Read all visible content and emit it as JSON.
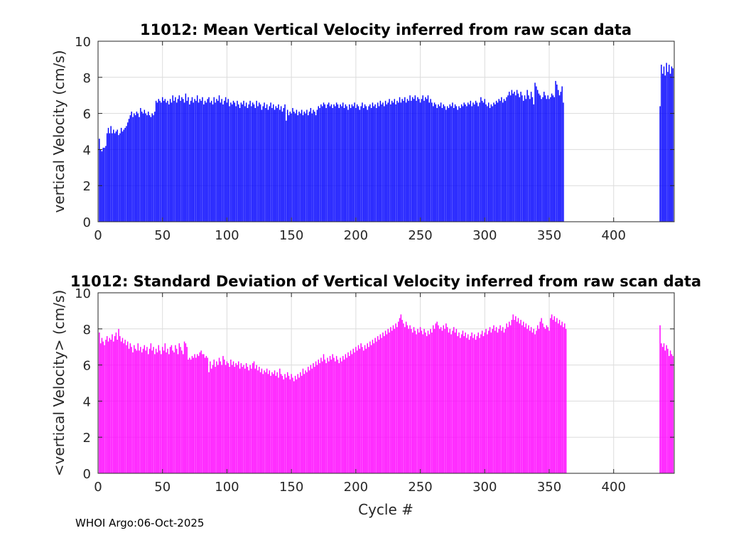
{
  "footer_text": "WHOI Argo:06-Oct-2025",
  "chart_data": [
    {
      "type": "bar",
      "title": "11012: Mean Vertical Velocity inferred from raw scan data",
      "xlabel": "",
      "ylabel": "vertical Velocity (cm/s)",
      "xlim": [
        0,
        447
      ],
      "ylim": [
        0,
        10
      ],
      "xticks": [
        0,
        50,
        100,
        150,
        200,
        250,
        300,
        350,
        400
      ],
      "yticks": [
        0,
        2,
        4,
        6,
        8,
        10
      ],
      "grid": true,
      "color": "#0000ff",
      "series": [
        {
          "name": "mean vertical velocity",
          "segments": [
            {
              "start_cycle": 1,
              "values": [
                4.6,
                4.0,
                3.9,
                4.1,
                4.1,
                4.2,
                4.9,
                5.2,
                4.9,
                5.3,
                4.9,
                5.1,
                4.9,
                5.0,
                5.1,
                4.8,
                4.9,
                5.2,
                5.0,
                5.1,
                5.2,
                5.3,
                5.5,
                5.7,
                5.9,
                6.1,
                5.8,
                6.0,
                5.9,
                6.1,
                6.0,
                5.8,
                6.3,
                6.1,
                6.0,
                6.2,
                6.0,
                5.9,
                6.1,
                5.9,
                5.8,
                6.0,
                5.9,
                6.1,
                6.7,
                6.6,
                6.8,
                6.7,
                6.6,
                6.9,
                6.7,
                6.8,
                6.6,
                6.7,
                6.5,
                6.8,
                6.6,
                7.0,
                6.7,
                6.9,
                6.6,
                6.8,
                7.0,
                6.7,
                6.9,
                6.8,
                6.6,
                7.1,
                6.7,
                6.9,
                6.5,
                6.7,
                6.9,
                6.6,
                6.8,
                6.7,
                7.0,
                6.6,
                6.8,
                6.7,
                6.9,
                6.5,
                6.7,
                6.6,
                6.8,
                6.9,
                6.6,
                6.7,
                6.5,
                6.9,
                6.6,
                6.8,
                6.7,
                7.0,
                6.6,
                6.8,
                6.5,
                6.7,
                6.9,
                6.6,
                6.8,
                6.4,
                6.6,
                6.5,
                6.7,
                6.6,
                6.4,
                6.7,
                6.5,
                6.3,
                6.6,
                6.5,
                6.7,
                6.4,
                6.6,
                6.3,
                6.5,
                6.7,
                6.4,
                6.6,
                6.5,
                6.3,
                6.7,
                6.4,
                6.6,
                6.5,
                6.2,
                6.4,
                6.6,
                6.3,
                6.5,
                6.2,
                6.4,
                6.6,
                6.3,
                6.5,
                6.2,
                6.4,
                6.3,
                6.5,
                6.2,
                6.4,
                6.1,
                6.3,
                6.5,
                5.6,
                6.2,
                5.9,
                6.1,
                6.0,
                6.3,
                6.1,
                6.0,
                6.2,
                5.9,
                6.1,
                6.0,
                6.2,
                5.9,
                6.1,
                6.0,
                6.2,
                5.9,
                6.1,
                6.3,
                6.0,
                6.2,
                6.1,
                5.9,
                6.2,
                6.4,
                6.3,
                6.5,
                6.4,
                6.6,
                6.5,
                6.3,
                6.5,
                6.6,
                6.4,
                6.5,
                6.3,
                6.5,
                6.4,
                6.6,
                6.5,
                6.3,
                6.5,
                6.4,
                6.6,
                6.3,
                6.5,
                6.4,
                6.2,
                6.5,
                6.3,
                6.5,
                6.4,
                6.6,
                6.3,
                6.5,
                6.4,
                6.2,
                6.4,
                6.6,
                6.3,
                6.5,
                6.4,
                6.2,
                6.4,
                6.5,
                6.3,
                6.6,
                6.4,
                6.5,
                6.3,
                6.6,
                6.4,
                6.7,
                6.5,
                6.6,
                6.4,
                6.7,
                6.5,
                6.6,
                6.8,
                6.5,
                6.7,
                6.6,
                6.8,
                6.5,
                6.7,
                6.6,
                6.9,
                6.6,
                6.8,
                6.7,
                6.9,
                6.6,
                6.8,
                6.7,
                7.0,
                6.7,
                6.9,
                6.8,
                7.0,
                6.7,
                6.9,
                6.8,
                6.6,
                6.8,
                7.0,
                6.7,
                6.9,
                6.8,
                7.0,
                6.6,
                6.8,
                6.6,
                6.4,
                6.6,
                6.5,
                6.3,
                6.5,
                6.4,
                6.6,
                6.3,
                6.5,
                6.4,
                6.2,
                6.4,
                6.3,
                6.5,
                6.4,
                6.6,
                6.3,
                6.5,
                6.4,
                6.2,
                6.4,
                6.3,
                6.5,
                6.4,
                6.6,
                6.5,
                6.4,
                6.6,
                6.5,
                6.7,
                6.4,
                6.6,
                6.5,
                6.7,
                6.6,
                6.4,
                6.6,
                6.9,
                6.7,
                6.6,
                6.8,
                6.5,
                6.4,
                6.6,
                6.3,
                6.5,
                6.4,
                6.6,
                6.5,
                6.7,
                6.6,
                6.8,
                6.7,
                6.9,
                6.6,
                6.8,
                6.7,
                6.9,
                7.0,
                7.2,
                7.0,
                7.3,
                7.1,
                7.2,
                7.0,
                7.3,
                7.1,
                6.9,
                7.2,
                7.0,
                6.7,
                7.0,
                6.8,
                7.3,
                7.0,
                6.8,
                7.2,
                6.9,
                6.5,
                7.7,
                7.5,
                7.3,
                7.1,
                7.0,
                6.8,
                6.9,
                7.2,
                7.0,
                6.8,
                7.0,
                6.8,
                6.9,
                7.1,
                7.0,
                6.9,
                7.8,
                7.6,
                7.3,
                7.0,
                7.2,
                7.5,
                6.6
              ]
            },
            {
              "start_cycle": 436,
              "values": [
                6.4,
                8.7,
                8.2,
                8.6,
                8.1,
                8.8,
                8.3,
                8.7,
                8.2,
                8.6,
                8.5
              ]
            }
          ]
        }
      ]
    },
    {
      "type": "bar",
      "title": "11012: Standard Deviation of Vertical Velocity inferred from raw scan data",
      "xlabel": "Cycle #",
      "ylabel": "<vertical Velocity> (cm/s)",
      "xlim": [
        0,
        447
      ],
      "ylim": [
        0,
        10
      ],
      "xticks": [
        0,
        50,
        100,
        150,
        200,
        250,
        300,
        350,
        400
      ],
      "yticks": [
        0,
        2,
        4,
        6,
        8,
        10
      ],
      "grid": true,
      "color": "#ff00ff",
      "series": [
        {
          "name": "std of vertical velocity",
          "segments": [
            {
              "start_cycle": 1,
              "values": [
                7.8,
                7.2,
                7.5,
                7.3,
                7.1,
                7.4,
                7.6,
                7.3,
                7.5,
                7.4,
                7.7,
                7.3,
                7.6,
                7.8,
                7.4,
                8.0,
                7.6,
                7.3,
                7.5,
                7.2,
                7.4,
                7.1,
                7.3,
                6.9,
                7.2,
                7.0,
                6.7,
                7.1,
                6.9,
                6.8,
                7.2,
                6.8,
                7.0,
                6.7,
                6.9,
                7.1,
                6.8,
                7.0,
                6.6,
                6.9,
                7.2,
                6.8,
                7.0,
                6.6,
                6.9,
                6.7,
                7.1,
                6.8,
                6.6,
                7.0,
                6.8,
                7.2,
                6.7,
                6.9,
                6.6,
                7.0,
                7.1,
                6.8,
                6.7,
                7.1,
                6.9,
                6.6,
                7.2,
                7.0,
                6.8,
                6.6,
                7.3,
                7.2,
                7.0,
                6.3,
                6.4,
                6.3,
                6.5,
                6.4,
                6.6,
                6.4,
                6.6,
                6.5,
                6.7,
                6.8,
                6.6,
                6.6,
                6.4,
                6.5,
                6.4,
                5.6,
                6.2,
                5.8,
                6.0,
                6.3,
                5.9,
                6.2,
                6.0,
                6.4,
                6.2,
                6.0,
                6.5,
                6.3,
                6.0,
                6.2,
                6.1,
                5.9,
                6.3,
                6.0,
                6.2,
                5.9,
                6.1,
                6.0,
                6.2,
                5.8,
                6.1,
                5.9,
                6.0,
                5.8,
                6.1,
                5.9,
                5.7,
                6.0,
                5.8,
                6.1,
                6.2,
                5.8,
                6.0,
                5.7,
                5.9,
                5.6,
                5.8,
                5.5,
                5.7,
                5.6,
                5.8,
                5.5,
                5.7,
                5.4,
                5.6,
                5.5,
                5.7,
                5.4,
                5.6,
                5.3,
                5.8,
                5.5,
                5.4,
                5.2,
                5.5,
                5.3,
                5.6,
                5.4,
                5.2,
                5.5,
                5.3,
                5.1,
                5.4,
                5.2,
                5.5,
                5.3,
                5.6,
                5.4,
                5.8,
                5.5,
                5.7,
                5.6,
                5.9,
                5.7,
                6.0,
                5.8,
                6.1,
                5.9,
                6.2,
                6.0,
                6.3,
                6.1,
                6.4,
                6.2,
                6.6,
                6.3,
                6.1,
                6.4,
                6.2,
                6.5,
                6.3,
                6.6,
                6.4,
                6.2,
                6.5,
                6.3,
                6.1,
                6.4,
                6.2,
                6.5,
                6.3,
                6.6,
                6.4,
                6.7,
                6.5,
                6.8,
                6.6,
                6.9,
                6.7,
                7.0,
                6.8,
                7.1,
                6.9,
                7.2,
                7.0,
                6.8,
                7.1,
                6.9,
                7.2,
                7.0,
                7.3,
                7.1,
                7.4,
                7.2,
                7.5,
                7.3,
                7.6,
                7.4,
                7.7,
                7.5,
                7.8,
                7.6,
                7.9,
                7.7,
                8.0,
                7.8,
                8.1,
                7.9,
                8.2,
                8.0,
                8.3,
                8.1,
                8.4,
                8.6,
                8.8,
                8.5,
                8.3,
                8.1,
                8.4,
                8.2,
                8.0,
                8.2,
                8.0,
                7.8,
                8.1,
                7.9,
                7.7,
                8.0,
                7.8,
                8.1,
                7.9,
                7.7,
                8.0,
                7.8,
                7.6,
                7.9,
                7.7,
                8.0,
                7.8,
                8.2,
                8.0,
                8.3,
                8.4,
                8.2,
                8.0,
                8.1,
                7.9,
                8.2,
                8.0,
                8.3,
                8.1,
                7.8,
                8.0,
                7.7,
                7.9,
                8.1,
                7.8,
                8.0,
                7.6,
                7.8,
                7.5,
                7.7,
                7.9,
                7.6,
                7.8,
                7.5,
                7.7,
                7.4,
                7.6,
                7.8,
                7.5,
                7.7,
                7.4,
                7.6,
                7.8,
                7.5,
                7.7,
                7.9,
                7.6,
                7.8,
                8.0,
                7.7,
                7.9,
                8.1,
                7.8,
                8.0,
                8.2,
                7.9,
                8.1,
                7.8,
                8.0,
                8.2,
                7.9,
                8.1,
                7.8,
                8.0,
                8.3,
                8.1,
                8.4,
                8.2,
                8.5,
                8.8,
                8.5,
                8.7,
                8.4,
                8.6,
                8.3,
                8.5,
                8.2,
                8.4,
                8.1,
                8.3,
                8.0,
                8.2,
                7.9,
                8.1,
                7.8,
                8.0,
                7.7,
                7.9,
                8.2,
                8.0,
                8.4,
                8.6,
                8.3,
                8.1,
                8.0,
                8.2,
                8.1,
                7.9,
                8.6,
                8.8,
                8.5,
                8.7,
                8.4,
                8.6,
                8.3,
                8.5,
                8.2,
                8.4,
                8.1,
                8.3,
                8.0
              ]
            },
            {
              "start_cycle": 436,
              "values": [
                8.2,
                7.2,
                7.0,
                7.2,
                6.8,
                7.1,
                6.9,
                6.5,
                6.8,
                6.6,
                6.5
              ]
            }
          ]
        }
      ]
    }
  ]
}
